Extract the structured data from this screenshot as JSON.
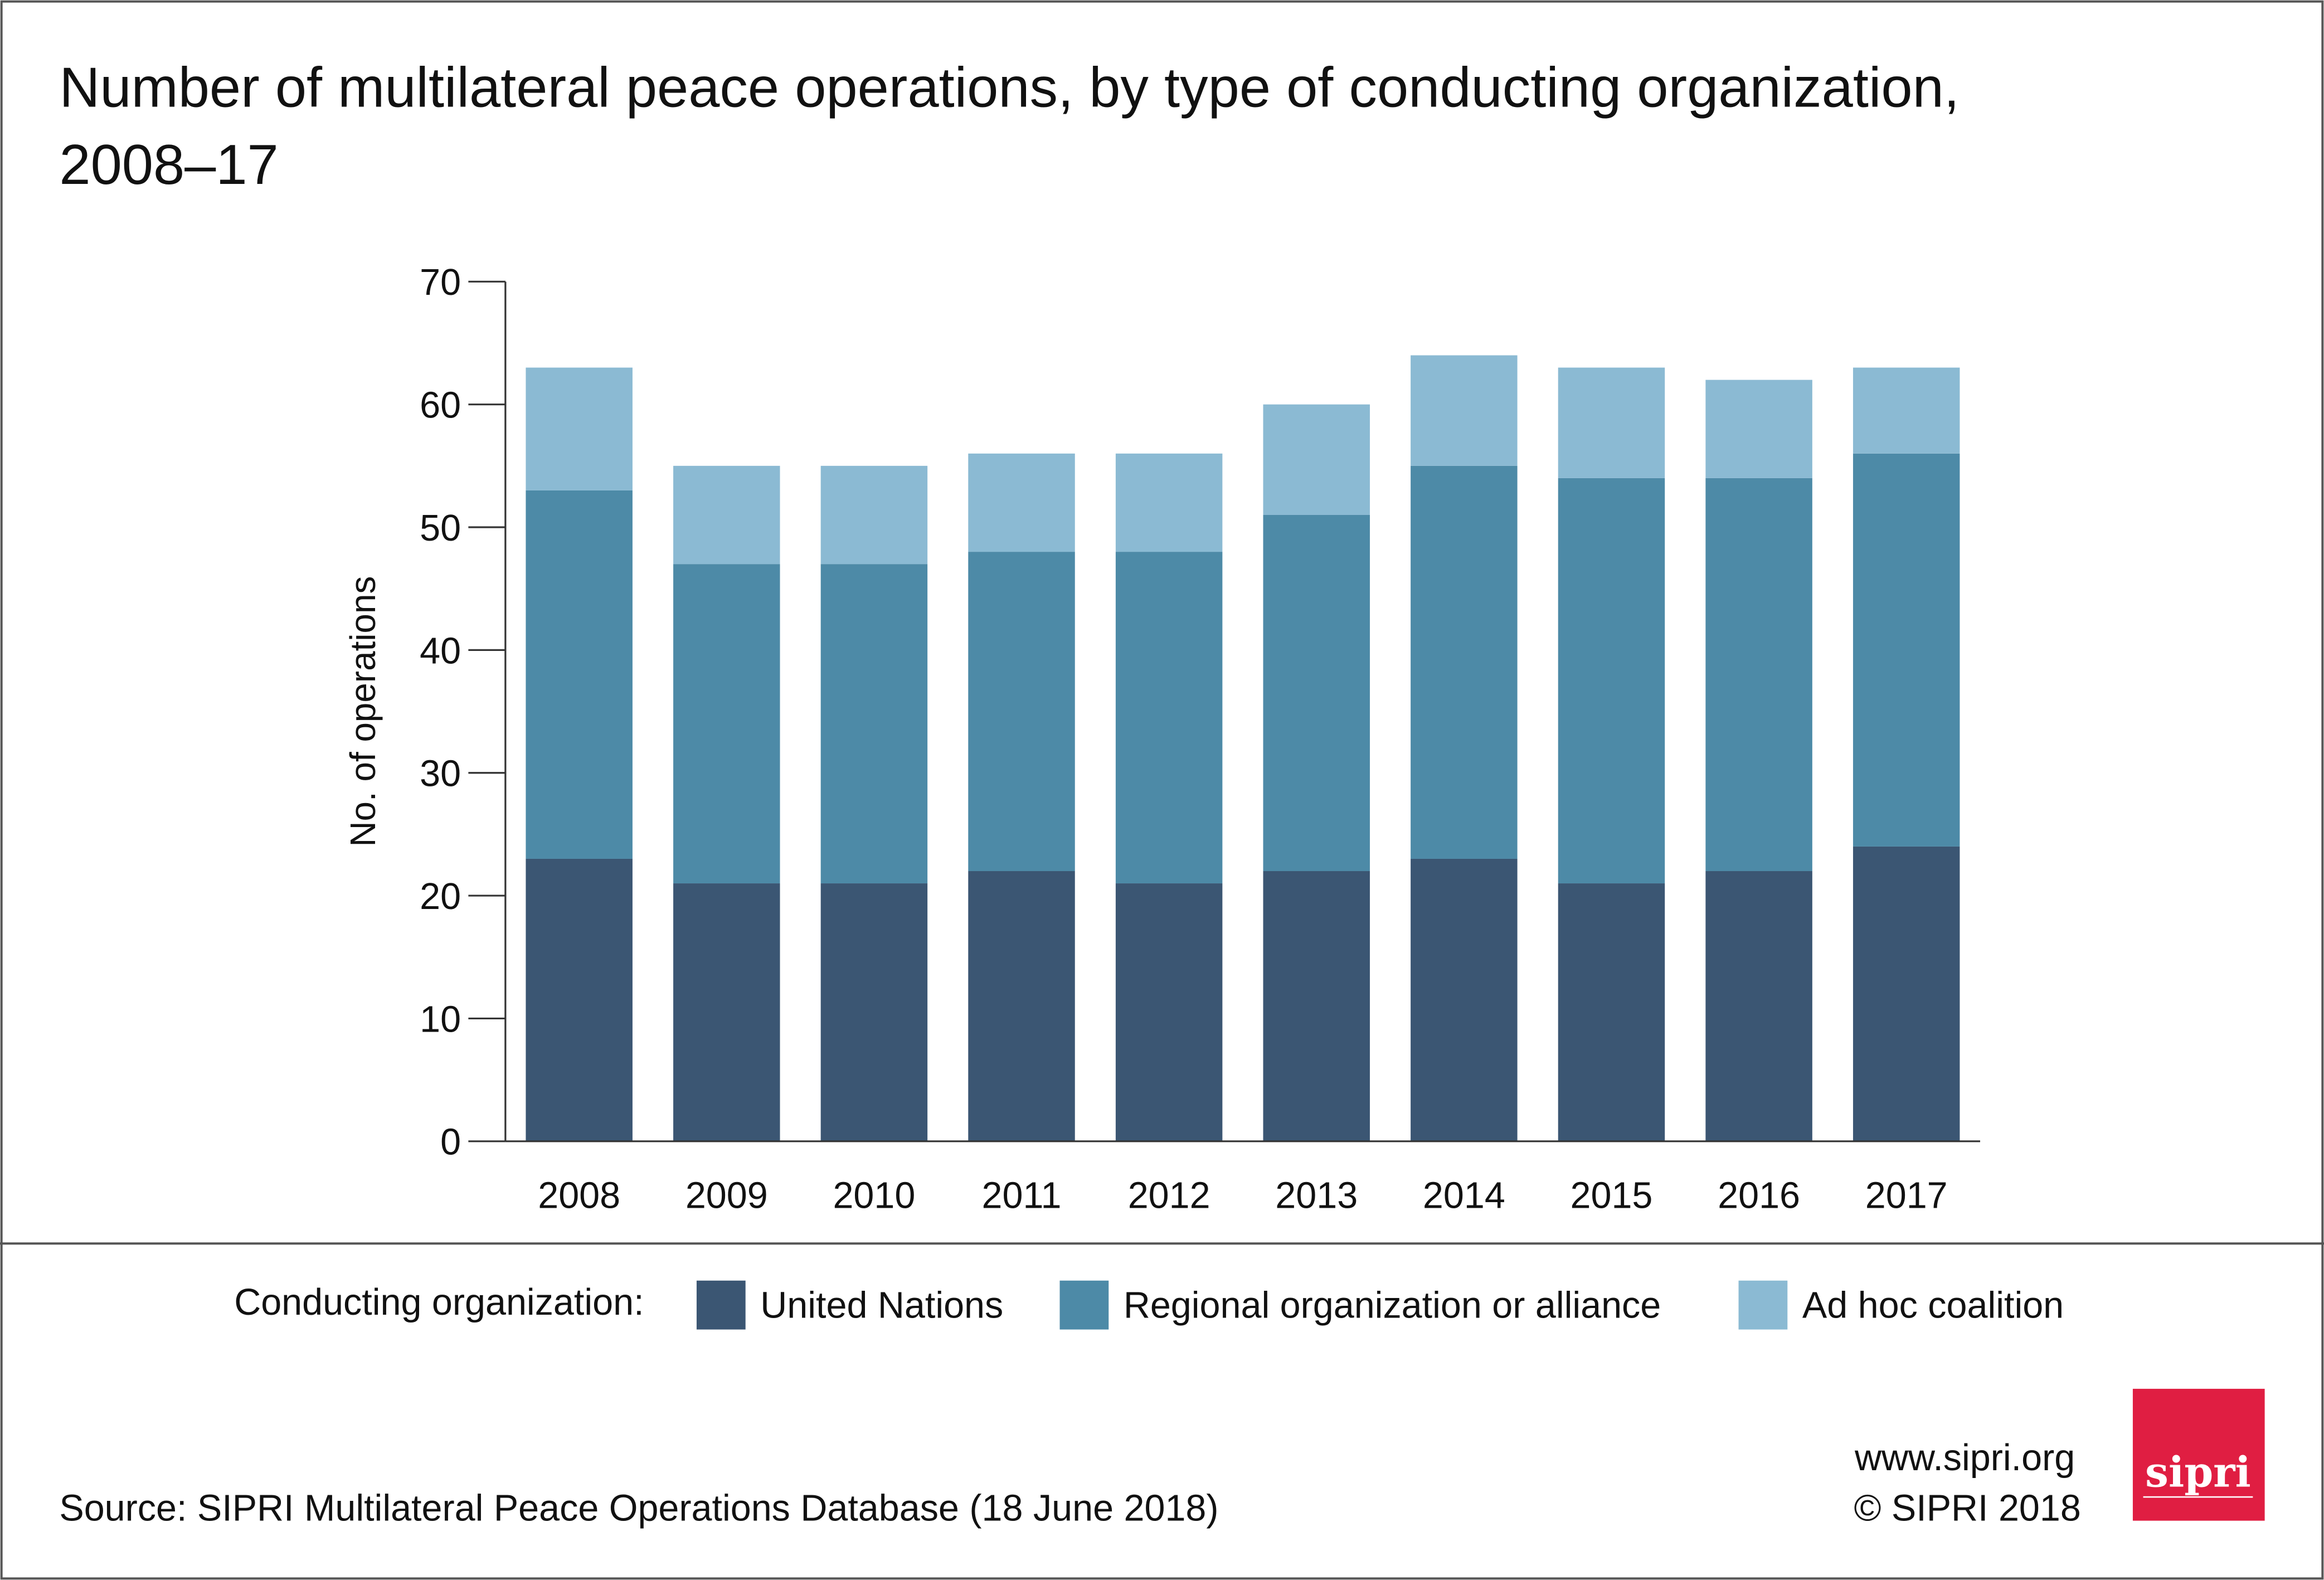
{
  "title_line1": "Number of multilateral peace operations, by type of conducting organization,",
  "title_line2": "2008–17",
  "legend": {
    "label": "Conducting organization:",
    "placement": "bottom"
  },
  "source": "Source: SIPRI Multilateral Peace Operations Database (18 June 2018)",
  "website": "www.sipri.org",
  "copyright": "© SIPRI 2018",
  "logo_text": "sipri",
  "colors": {
    "logo": "#e01e42",
    "frame": "#555555"
  },
  "chart_data": {
    "type": "bar",
    "stacked": true,
    "title": "Number of multilateral peace operations, by type of conducting organization, 2008–17",
    "xlabel": "",
    "ylabel": "No. of operations",
    "ylim": [
      0,
      70
    ],
    "yticks": [
      "0",
      "10",
      "20",
      "30",
      "40",
      "50",
      "60",
      "70"
    ],
    "grid": false,
    "categories": [
      "2008",
      "2009",
      "2010",
      "2011",
      "2012",
      "2013",
      "2014",
      "2015",
      "2016",
      "2017"
    ],
    "series": [
      {
        "name": "United Nations",
        "color": "#3b5673",
        "values": [
          23,
          21,
          21,
          22,
          21,
          22,
          23,
          21,
          22,
          24
        ]
      },
      {
        "name": "Regional organization or alliance",
        "color": "#4d8aa7",
        "values": [
          30,
          26,
          26,
          26,
          27,
          29,
          32,
          33,
          32,
          32
        ]
      },
      {
        "name": "Ad hoc coalition",
        "color": "#8bbad3",
        "values": [
          10,
          8,
          8,
          8,
          8,
          9,
          9,
          9,
          8,
          7
        ]
      }
    ]
  }
}
